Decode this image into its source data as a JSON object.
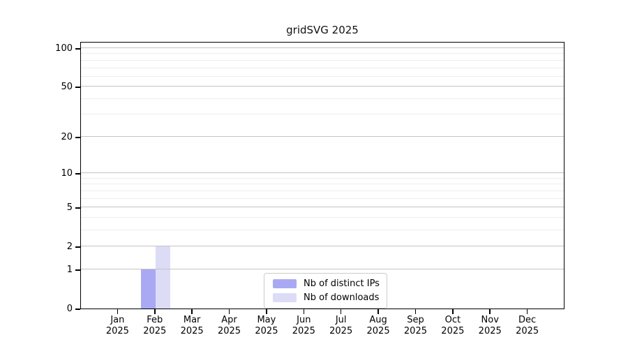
{
  "chart_data": {
    "type": "bar",
    "title": "gridSVG 2025",
    "categories": [
      "Jan",
      "Feb",
      "Mar",
      "Apr",
      "May",
      "Jun",
      "Jul",
      "Aug",
      "Sep",
      "Oct",
      "Nov",
      "Dec"
    ],
    "category_year": "2025",
    "series": [
      {
        "name": "Nb of distinct IPs",
        "color": "#a9a9f3",
        "values": [
          0,
          1,
          0,
          0,
          0,
          0,
          0,
          0,
          0,
          0,
          0,
          0
        ]
      },
      {
        "name": "Nb of downloads",
        "color": "#dcdcf7",
        "values": [
          0,
          2,
          0,
          0,
          0,
          0,
          0,
          0,
          0,
          0,
          0,
          0
        ]
      }
    ],
    "y_axis": {
      "scale": "log1p",
      "major_ticks": [
        0,
        1,
        2,
        5,
        10,
        20,
        50,
        100
      ],
      "minor_ticks": [
        3,
        4,
        6,
        7,
        8,
        9,
        30,
        40,
        60,
        70,
        80,
        90
      ],
      "max_tick": 100
    },
    "x_axis": {
      "tick_label_format": "month-over-year"
    },
    "grid": "on",
    "legend_position": "bottom-center",
    "colors": {
      "frame": "#000000",
      "major_grid": "#c4c4c4",
      "minor_grid": "#ededed",
      "background": "#ffffff",
      "text": "#111111"
    }
  }
}
